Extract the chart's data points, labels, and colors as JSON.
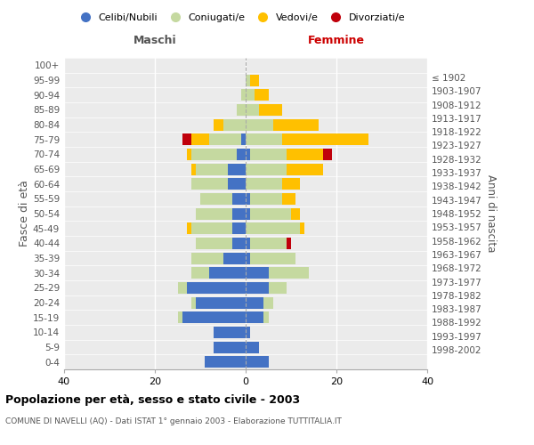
{
  "age_groups": [
    "0-4",
    "5-9",
    "10-14",
    "15-19",
    "20-24",
    "25-29",
    "30-34",
    "35-39",
    "40-44",
    "45-49",
    "50-54",
    "55-59",
    "60-64",
    "65-69",
    "70-74",
    "75-79",
    "80-84",
    "85-89",
    "90-94",
    "95-99",
    "100+"
  ],
  "birth_years": [
    "1998-2002",
    "1993-1997",
    "1988-1992",
    "1983-1987",
    "1978-1982",
    "1973-1977",
    "1968-1972",
    "1963-1967",
    "1958-1962",
    "1953-1957",
    "1948-1952",
    "1943-1947",
    "1938-1942",
    "1933-1937",
    "1928-1932",
    "1923-1927",
    "1918-1922",
    "1913-1917",
    "1908-1912",
    "1903-1907",
    "≤ 1902"
  ],
  "males": {
    "celibi": [
      9,
      7,
      7,
      14,
      11,
      13,
      8,
      5,
      3,
      3,
      3,
      3,
      4,
      4,
      2,
      1,
      0,
      0,
      0,
      0,
      0
    ],
    "coniugati": [
      0,
      0,
      0,
      1,
      1,
      2,
      4,
      7,
      8,
      9,
      8,
      7,
      8,
      7,
      10,
      7,
      5,
      2,
      1,
      0,
      0
    ],
    "vedovi": [
      0,
      0,
      0,
      0,
      0,
      0,
      0,
      0,
      0,
      1,
      0,
      0,
      0,
      1,
      1,
      4,
      2,
      0,
      0,
      0,
      0
    ],
    "divorziati": [
      0,
      0,
      0,
      0,
      0,
      0,
      0,
      0,
      0,
      0,
      0,
      0,
      0,
      0,
      0,
      2,
      0,
      0,
      0,
      0,
      0
    ]
  },
  "females": {
    "nubili": [
      5,
      3,
      1,
      4,
      4,
      5,
      5,
      1,
      1,
      0,
      1,
      1,
      0,
      0,
      1,
      0,
      0,
      0,
      0,
      0,
      0
    ],
    "coniugate": [
      0,
      0,
      0,
      1,
      2,
      4,
      9,
      10,
      8,
      12,
      9,
      7,
      8,
      9,
      8,
      8,
      6,
      3,
      2,
      1,
      0
    ],
    "vedove": [
      0,
      0,
      0,
      0,
      0,
      0,
      0,
      0,
      0,
      1,
      2,
      3,
      4,
      8,
      8,
      19,
      10,
      5,
      3,
      2,
      0
    ],
    "divorziate": [
      0,
      0,
      0,
      0,
      0,
      0,
      0,
      0,
      1,
      0,
      0,
      0,
      0,
      0,
      2,
      0,
      0,
      0,
      0,
      0,
      0
    ]
  },
  "color_celibi": "#4472c4",
  "color_coniugati": "#c5d9a0",
  "color_vedovi": "#ffc000",
  "color_divorziati": "#c0000b",
  "xlim": 40,
  "title": "Popolazione per età, sesso e stato civile - 2003",
  "subtitle": "COMUNE DI NAVELLI (AQ) - Dati ISTAT 1° gennaio 2003 - Elaborazione TUTTITALIA.IT",
  "ylabel_left": "Fasce di età",
  "ylabel_right": "Anni di nascita",
  "xlabel_left": "Maschi",
  "xlabel_right": "Femmine"
}
